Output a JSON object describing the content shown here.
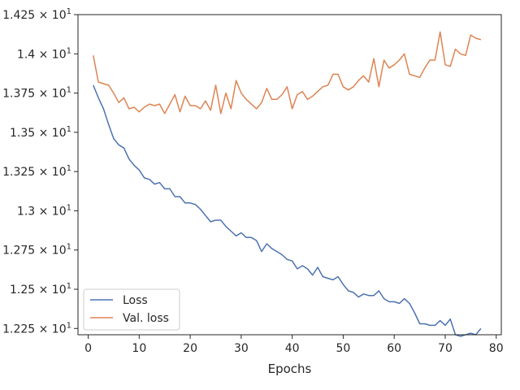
{
  "chart_data": {
    "type": "line",
    "xlabel": "Epochs",
    "ylabel": "",
    "xlim": [
      -2,
      81
    ],
    "ylim": [
      12.21,
      14.25
    ],
    "grid": false,
    "legend_position": "lower-left",
    "x_ticks": [
      {
        "value": 0,
        "label": "0"
      },
      {
        "value": 10,
        "label": "10"
      },
      {
        "value": 20,
        "label": "20"
      },
      {
        "value": 30,
        "label": "30"
      },
      {
        "value": 40,
        "label": "40"
      },
      {
        "value": 50,
        "label": "50"
      },
      {
        "value": 60,
        "label": "60"
      },
      {
        "value": 70,
        "label": "70"
      },
      {
        "value": 80,
        "label": "80"
      }
    ],
    "y_ticks": [
      {
        "value": 12.25,
        "label": "1.225 × 10",
        "exp": "1"
      },
      {
        "value": 12.5,
        "label": "1.25 × 10",
        "exp": "1"
      },
      {
        "value": 12.75,
        "label": "1.275 × 10",
        "exp": "1"
      },
      {
        "value": 13.0,
        "label": "1.3 × 10",
        "exp": "1"
      },
      {
        "value": 13.25,
        "label": "1.325 × 10",
        "exp": "1"
      },
      {
        "value": 13.5,
        "label": "1.35 × 10",
        "exp": "1"
      },
      {
        "value": 13.75,
        "label": "1.375 × 10",
        "exp": "1"
      },
      {
        "value": 14.0,
        "label": "1.4 × 10",
        "exp": "1"
      },
      {
        "value": 14.25,
        "label": "1.425 × 10",
        "exp": "1"
      }
    ],
    "x": [
      1,
      2,
      3,
      4,
      5,
      6,
      7,
      8,
      9,
      10,
      11,
      12,
      13,
      14,
      15,
      16,
      17,
      18,
      19,
      20,
      21,
      22,
      23,
      24,
      25,
      26,
      27,
      28,
      29,
      30,
      31,
      32,
      33,
      34,
      35,
      36,
      37,
      38,
      39,
      40,
      41,
      42,
      43,
      44,
      45,
      46,
      47,
      48,
      49,
      50,
      51,
      52,
      53,
      54,
      55,
      56,
      57,
      58,
      59,
      60,
      61,
      62,
      63,
      64,
      65,
      66,
      67,
      68,
      69,
      70,
      71,
      72,
      73,
      74,
      75,
      76,
      77
    ],
    "series": [
      {
        "name": "Loss",
        "color": "#4c72b0",
        "values": [
          13.8,
          13.72,
          13.65,
          13.55,
          13.46,
          13.42,
          13.4,
          13.33,
          13.29,
          13.26,
          13.21,
          13.2,
          13.17,
          13.18,
          13.14,
          13.14,
          13.09,
          13.09,
          13.05,
          13.05,
          13.04,
          13.01,
          12.97,
          12.93,
          12.94,
          12.94,
          12.9,
          12.87,
          12.84,
          12.86,
          12.83,
          12.83,
          12.81,
          12.74,
          12.79,
          12.76,
          12.74,
          12.72,
          12.69,
          12.68,
          12.63,
          12.65,
          12.63,
          12.59,
          12.64,
          12.58,
          12.57,
          12.56,
          12.58,
          12.53,
          12.49,
          12.48,
          12.45,
          12.47,
          12.46,
          12.46,
          12.49,
          12.44,
          12.42,
          12.42,
          12.41,
          12.44,
          12.41,
          12.35,
          12.28,
          12.28,
          12.27,
          12.27,
          12.3,
          12.27,
          12.31,
          12.21,
          12.2,
          12.21,
          12.22,
          12.21,
          12.25
        ]
      },
      {
        "name": "Val. loss",
        "color": "#dd8452",
        "values": [
          13.99,
          13.82,
          13.81,
          13.8,
          13.75,
          13.69,
          13.72,
          13.65,
          13.66,
          13.63,
          13.66,
          13.68,
          13.67,
          13.68,
          13.62,
          13.68,
          13.74,
          13.63,
          13.73,
          13.67,
          13.67,
          13.65,
          13.7,
          13.64,
          13.8,
          13.62,
          13.75,
          13.65,
          13.83,
          13.75,
          13.71,
          13.68,
          13.65,
          13.69,
          13.78,
          13.71,
          13.71,
          13.74,
          13.79,
          13.65,
          13.74,
          13.76,
          13.71,
          13.73,
          13.76,
          13.79,
          13.8,
          13.87,
          13.87,
          13.79,
          13.77,
          13.79,
          13.83,
          13.86,
          13.82,
          13.97,
          13.79,
          13.96,
          13.91,
          13.93,
          13.96,
          14.0,
          13.87,
          13.86,
          13.85,
          13.91,
          13.96,
          13.96,
          14.14,
          13.93,
          13.92,
          14.03,
          14.0,
          13.99,
          14.12,
          14.1,
          14.09
        ]
      }
    ]
  }
}
